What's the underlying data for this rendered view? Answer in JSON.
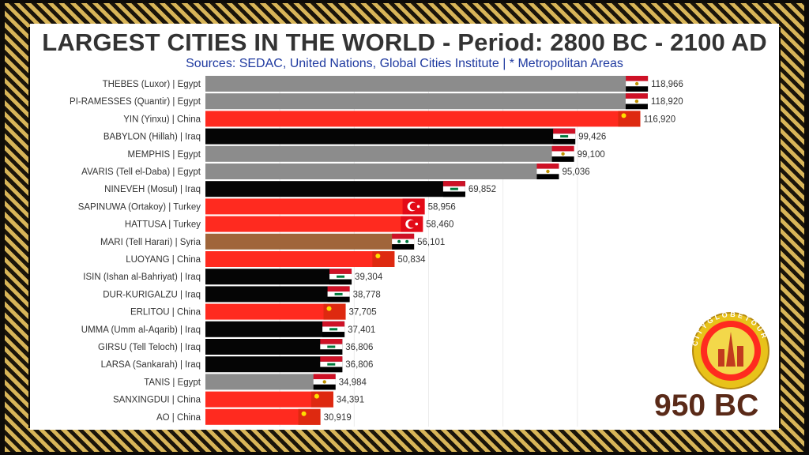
{
  "title": "LARGEST CITIES IN THE WORLD - Period: 2800 BC - 2100 AD",
  "subtitle": "Sources: SEDAC, United Nations, Global Cities Institute | * Metropolitan Areas",
  "year_label": "950 BC",
  "logo_text": "CITYGLOBETOUR",
  "colors": {
    "Egypt": "#8c8c8c",
    "China": "#ff2a1f",
    "Iraq": "#050505",
    "Turkey": "#ff2a1f",
    "Syria": "#a0653a",
    "background": "#ffffff",
    "frame_gold": "#c8a24a"
  },
  "chart_data": {
    "type": "bar",
    "orientation": "horizontal",
    "xlim": [
      0,
      120000
    ],
    "grid": true,
    "categories": [
      "THEBES (Luxor) | Egypt",
      "PI-RAMESSES (Quantir) | Egypt",
      "YIN (Yinxu) | China",
      "BABYLON (Hillah) | Iraq",
      "MEMPHIS | Egypt",
      "AVARIS (Tell el-Daba) | Egypt",
      "NINEVEH (Mosul) | Iraq",
      "SAPINUWA (Ortakoy) | Turkey",
      "HATTUSA | Turkey",
      "MARI (Tell Harari) | Syria",
      "LUOYANG | China",
      "ISIN (Ishan al-Bahriyat) | Iraq",
      "DUR-KURIGALZU | Iraq",
      "ERLITOU | China",
      "UMMA (Umm al-Aqarib) | Iraq",
      "GIRSU (Tell Teloch) | Iraq",
      "LARSA (Sankarah) | Iraq",
      "TANIS | Egypt",
      "SANXINGDUI | China",
      "AO | China"
    ],
    "values": [
      118966,
      118920,
      116920,
      99426,
      99100,
      95036,
      69852,
      58956,
      58460,
      56101,
      50834,
      39304,
      38778,
      37705,
      37401,
      36806,
      36806,
      34984,
      34391,
      30919
    ],
    "value_labels": [
      "118,966",
      "118,920",
      "116,920",
      "99,426",
      "99,100",
      "95,036",
      "69,852",
      "58,956",
      "58,460",
      "56,101",
      "50,834",
      "39,304",
      "38,778",
      "37,705",
      "37,401",
      "36,806",
      "36,806",
      "34,984",
      "34,391",
      "30,919"
    ],
    "countries": [
      "Egypt",
      "Egypt",
      "China",
      "Iraq",
      "Egypt",
      "Egypt",
      "Iraq",
      "Turkey",
      "Turkey",
      "Syria",
      "China",
      "Iraq",
      "Iraq",
      "China",
      "Iraq",
      "Iraq",
      "Iraq",
      "Egypt",
      "China",
      "China"
    ]
  }
}
